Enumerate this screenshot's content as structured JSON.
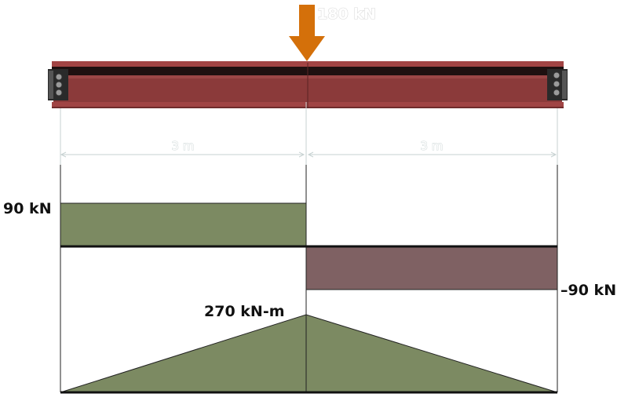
{
  "load": {
    "label": "180 kN",
    "color": "#d4700a"
  },
  "dimensions": {
    "left_span": "3 m",
    "right_span": "3 m"
  },
  "shear": {
    "positive_label": "90 kN",
    "negative_label": "–90 kN",
    "positive_color": "#7c8a62",
    "negative_color": "#7f6163"
  },
  "moment": {
    "max_label": "270 kN-m",
    "fill_color": "#7c8a62"
  },
  "beam": {
    "color": "#8b3a3a",
    "flange_color": "#1e1010"
  }
}
